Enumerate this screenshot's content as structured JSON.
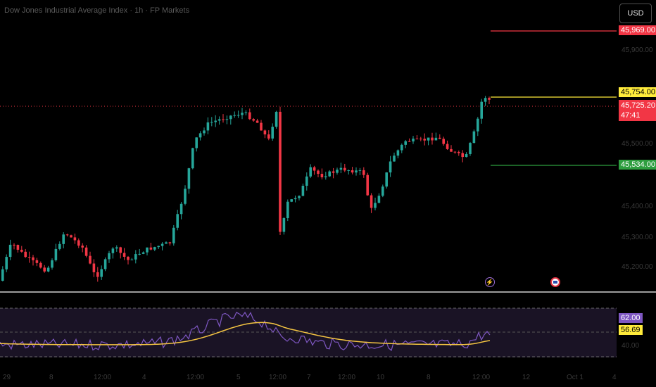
{
  "header": {
    "title": "Dow Jones Industrial Average Index · 1h · FP Markets",
    "currency_button": "USD"
  },
  "levels": {
    "upper_target": "45,969.00",
    "entry": "45,754.00",
    "current_price": "45,725.20",
    "countdown": "47:41",
    "lower_target": "45,534.00"
  },
  "price_axis": [
    "45,900.00",
    "45,500.00",
    "45,400.00",
    "45,300.00",
    "45,200.00"
  ],
  "rsi": {
    "value": "62.00",
    "ma_value": "56.69",
    "mid_label": "40.00"
  },
  "time_axis": [
    "29",
    "8",
    "12:00",
    "4",
    "12:00",
    "5",
    "12:00",
    "7",
    "12:00",
    "10",
    "8",
    "12:00",
    "12",
    "Oct 1",
    "4"
  ],
  "colors": {
    "up": "#26a69a",
    "down": "#f23645",
    "rsi": "#7e57c2",
    "rsi_ma": "#f5c542",
    "entry": "#ffeb3b",
    "target_up": "#f23645",
    "target_down": "#2e9e3f"
  },
  "icons": {
    "event_1": "lightning-icon",
    "event_2": "us-flag-icon"
  }
}
